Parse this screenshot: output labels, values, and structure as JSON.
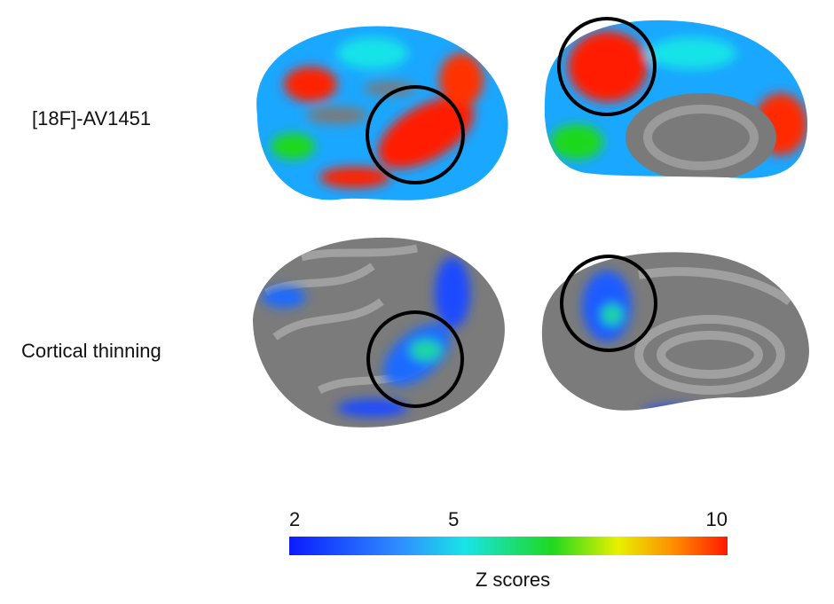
{
  "rows": [
    {
      "label": "[18F]-AV1451"
    },
    {
      "label": "Cortical thinning"
    }
  ],
  "colorbar": {
    "label": "Z scores",
    "lim": [
      2,
      10
    ],
    "ticks": [
      2,
      5,
      10
    ]
  }
}
